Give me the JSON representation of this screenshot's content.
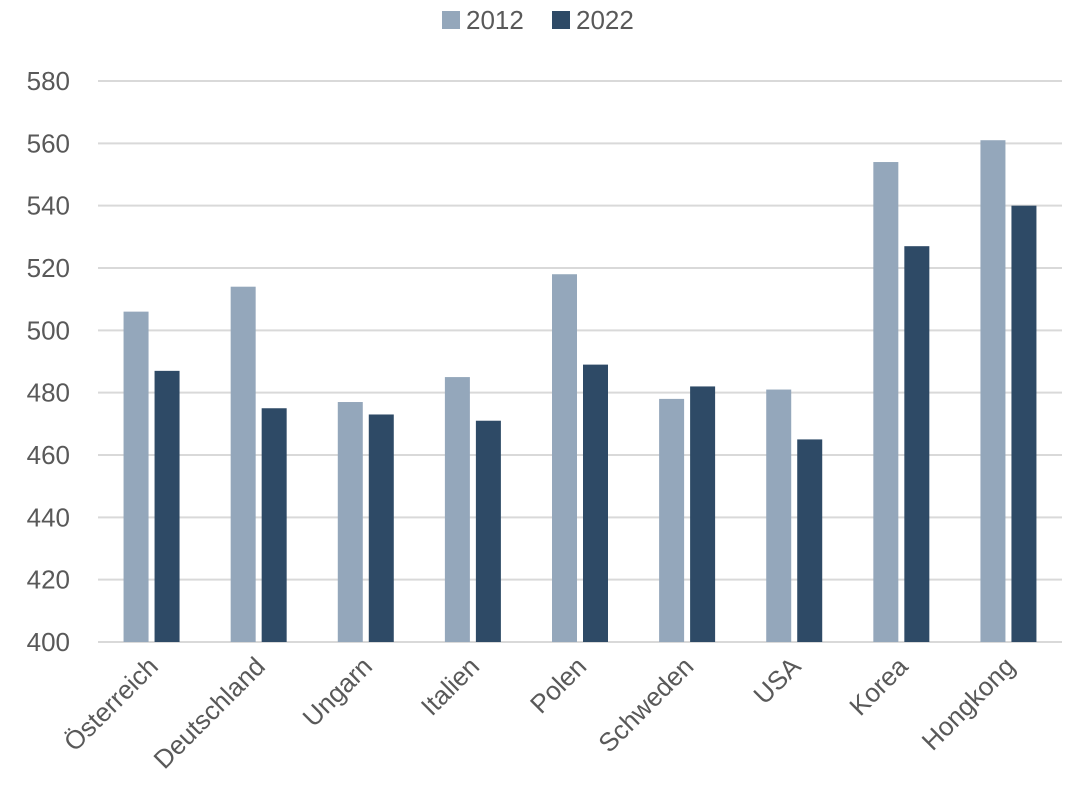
{
  "chart_data": {
    "type": "bar",
    "title": "",
    "xlabel": "",
    "ylabel": "",
    "categories": [
      "Österreich",
      "Deutschland",
      "Ungarn",
      "Italien",
      "Polen",
      "Schweden",
      "USA",
      "Korea",
      "Hongkong"
    ],
    "series": [
      {
        "name": "2012",
        "color": "#94a7bb",
        "values": [
          506,
          514,
          477,
          485,
          518,
          478,
          481,
          554,
          561
        ]
      },
      {
        "name": "2022",
        "color": "#2e4a66",
        "values": [
          487,
          475,
          473,
          471,
          489,
          482,
          465,
          527,
          540
        ]
      }
    ],
    "ylim": [
      400,
      580
    ],
    "yticks": [
      400,
      420,
      440,
      460,
      480,
      500,
      520,
      540,
      560,
      580
    ],
    "grid": true,
    "legend": "top-center",
    "colors": {
      "grid": "#d9d9d9",
      "text": "#595959"
    }
  }
}
